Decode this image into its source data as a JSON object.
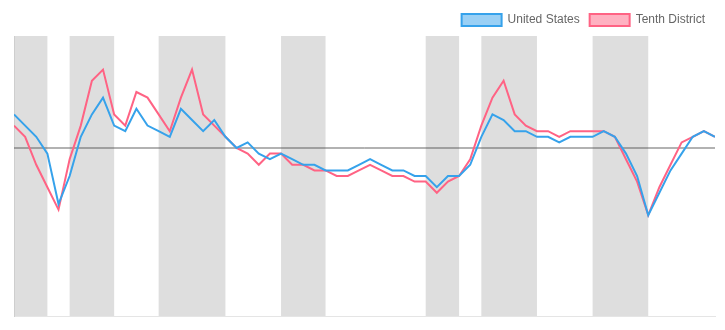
{
  "chart_data": {
    "type": "line",
    "x": [
      0,
      1,
      2,
      3,
      4,
      5,
      6,
      7,
      8,
      9,
      10,
      11,
      12,
      13,
      14,
      15,
      16,
      17,
      18,
      19,
      20,
      21,
      22,
      23,
      24,
      25,
      26,
      27,
      28,
      29,
      30,
      31,
      32,
      33,
      34,
      35,
      36,
      37,
      38,
      39,
      40,
      41,
      42,
      43,
      44,
      45,
      46,
      47,
      48,
      49,
      50,
      51,
      52,
      53,
      54,
      55,
      56,
      57,
      58,
      59,
      60,
      61,
      62,
      63
    ],
    "series": [
      {
        "name": "United States",
        "values": [
          6,
          4,
          2,
          -1,
          -10,
          -5,
          2,
          6,
          9,
          4,
          3,
          7,
          4,
          3,
          2,
          7,
          5,
          3,
          5,
          2,
          0,
          1,
          -1,
          -2,
          -1,
          -2,
          -3,
          -3,
          -4,
          -4,
          -4,
          -3,
          -2,
          -3,
          -4,
          -4,
          -5,
          -5,
          -7,
          -5,
          -5,
          -3,
          2,
          6,
          5,
          3,
          3,
          2,
          2,
          1,
          2,
          2,
          2,
          3,
          2,
          -1,
          -5,
          -12,
          -8,
          -4,
          -1,
          2,
          3,
          2
        ]
      },
      {
        "name": "Tenth District",
        "values": [
          4,
          2,
          -3,
          -7,
          -11,
          -2,
          4,
          12,
          14,
          6,
          4,
          10,
          9,
          6,
          3,
          9,
          14,
          6,
          4,
          2,
          0,
          -1,
          -3,
          -1,
          -1,
          -3,
          -3,
          -4,
          -4,
          -5,
          -5,
          -4,
          -3,
          -4,
          -5,
          -5,
          -6,
          -6,
          -8,
          -6,
          -5,
          -2,
          4,
          9,
          12,
          6,
          4,
          3,
          3,
          2,
          3,
          3,
          3,
          3,
          2,
          -2,
          -6,
          -12,
          -7,
          -3,
          1,
          2,
          3,
          2
        ]
      }
    ],
    "bands": [
      [
        0,
        3
      ],
      [
        5,
        9
      ],
      [
        13,
        19
      ],
      [
        24,
        28
      ],
      [
        37,
        40
      ],
      [
        42,
        47
      ],
      [
        52,
        57
      ]
    ],
    "hlines": [
      0
    ],
    "xlim": [
      0,
      63
    ],
    "ylim": [
      -30,
      20
    ],
    "tick_labels": false,
    "grid": false,
    "legend": "upper right"
  }
}
